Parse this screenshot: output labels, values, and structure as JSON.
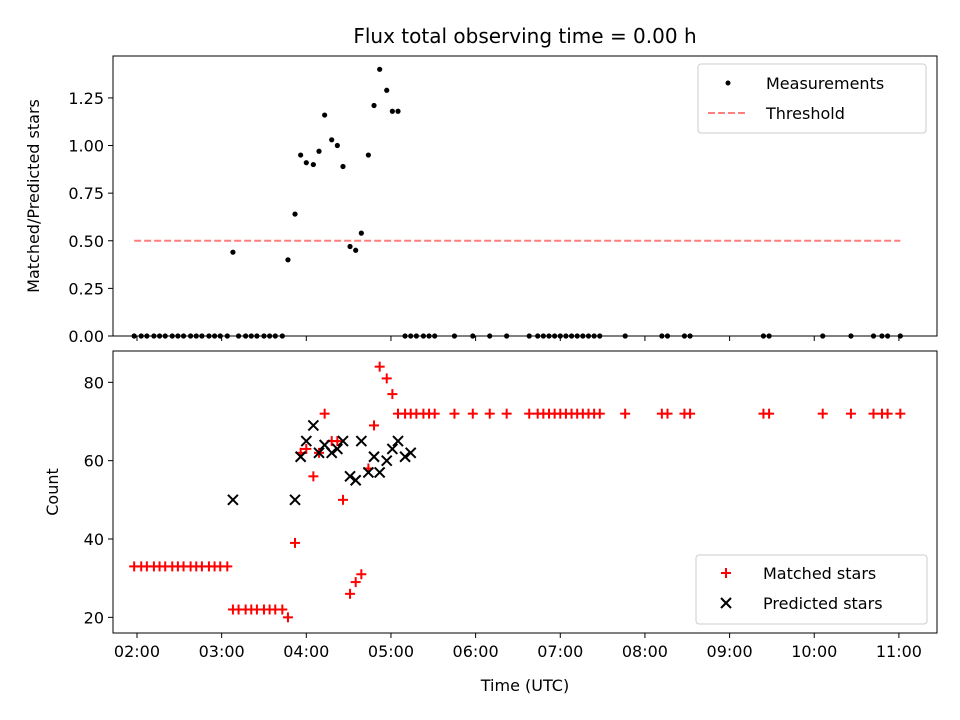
{
  "chart_data": [
    {
      "type": "scatter",
      "title": "Flux total observing time = 0.00 h",
      "xlabel": "",
      "ylabel": "Matched/Predicted stars",
      "xlim": [
        "01:43",
        "11:27"
      ],
      "ylim": [
        0,
        1.47
      ],
      "x_ticks": [
        "02:00",
        "03:00",
        "04:00",
        "05:00",
        "06:00",
        "07:00",
        "08:00",
        "09:00",
        "10:00",
        "11:00"
      ],
      "y_ticks": [
        {
          "value": 0.0,
          "label": "0.00"
        },
        {
          "value": 0.25,
          "label": "0.25"
        },
        {
          "value": 0.5,
          "label": "0.50"
        },
        {
          "value": 0.75,
          "label": "0.75"
        },
        {
          "value": 1.0,
          "label": "1.00"
        },
        {
          "value": 1.25,
          "label": "1.25"
        }
      ],
      "legend_position": "top-right",
      "series": [
        {
          "name": "Measurements",
          "kind": "dots",
          "color": "#000000",
          "x": [
            "01:58",
            "02:03",
            "02:07",
            "02:12",
            "02:16",
            "02:20",
            "02:25",
            "02:29",
            "02:33",
            "02:38",
            "02:42",
            "02:46",
            "02:51",
            "02:55",
            "02:59",
            "03:04",
            "03:08",
            "03:12",
            "03:17",
            "03:21",
            "03:25",
            "03:30",
            "03:34",
            "03:38",
            "03:43",
            "03:47",
            "03:52",
            "03:56",
            "04:00",
            "04:05",
            "04:09",
            "04:13",
            "04:18",
            "04:22",
            "04:26",
            "04:31",
            "04:35",
            "04:39",
            "04:44",
            "04:48",
            "04:52",
            "04:57",
            "05:01",
            "05:05",
            "05:10",
            "05:14",
            "05:18",
            "05:23",
            "05:27",
            "05:31",
            "05:45",
            "05:58",
            "06:10",
            "06:22",
            "06:38",
            "06:44",
            "06:48",
            "06:52",
            "06:56",
            "07:00",
            "07:04",
            "07:08",
            "07:12",
            "07:16",
            "07:20",
            "07:24",
            "07:28",
            "07:46",
            "08:12",
            "08:16",
            "08:28",
            "08:32",
            "09:24",
            "09:28",
            "10:06",
            "10:26",
            "10:42",
            "10:48",
            "10:52",
            "11:01"
          ],
          "y": [
            0,
            0,
            0,
            0,
            0,
            0,
            0,
            0,
            0,
            0,
            0,
            0,
            0,
            0,
            0,
            0,
            0.44,
            0,
            0,
            0,
            0,
            0,
            0,
            0,
            0,
            0.4,
            0.64,
            0.95,
            0.91,
            0.9,
            0.97,
            1.16,
            1.03,
            1.0,
            0.89,
            0.47,
            0.45,
            0.54,
            0.95,
            1.21,
            1.4,
            1.29,
            1.18,
            1.18,
            0,
            0,
            0,
            0,
            0,
            0,
            0,
            0,
            0,
            0,
            0,
            0,
            0,
            0,
            0,
            0,
            0,
            0,
            0,
            0,
            0,
            0,
            0,
            0,
            0,
            0,
            0,
            0,
            0,
            0,
            0,
            0,
            0,
            0,
            0,
            0
          ]
        },
        {
          "name": "Threshold",
          "kind": "dashed-line",
          "color": "#ff7f7f",
          "x": [
            "01:58",
            "11:01"
          ],
          "y": [
            0.5,
            0.5
          ]
        }
      ]
    },
    {
      "type": "scatter",
      "title": "",
      "xlabel": "Time (UTC)",
      "ylabel": "Count",
      "xlim": [
        "01:43",
        "11:27"
      ],
      "ylim": [
        16,
        88
      ],
      "x_ticks": [
        "02:00",
        "03:00",
        "04:00",
        "05:00",
        "06:00",
        "07:00",
        "08:00",
        "09:00",
        "10:00",
        "11:00"
      ],
      "y_ticks": [
        {
          "value": 20,
          "label": "20"
        },
        {
          "value": 40,
          "label": "40"
        },
        {
          "value": 60,
          "label": "60"
        },
        {
          "value": 80,
          "label": "80"
        }
      ],
      "legend_position": "bottom-right",
      "series": [
        {
          "name": "Matched stars",
          "kind": "plus",
          "color": "#ff0000",
          "x": [
            "01:58",
            "02:03",
            "02:07",
            "02:12",
            "02:16",
            "02:20",
            "02:25",
            "02:29",
            "02:33",
            "02:38",
            "02:42",
            "02:46",
            "02:51",
            "02:55",
            "02:59",
            "03:04",
            "03:08",
            "03:12",
            "03:17",
            "03:21",
            "03:25",
            "03:30",
            "03:34",
            "03:38",
            "03:43",
            "03:47",
            "03:52",
            "03:56",
            "04:00",
            "04:05",
            "04:09",
            "04:13",
            "04:18",
            "04:22",
            "04:26",
            "04:31",
            "04:35",
            "04:39",
            "04:44",
            "04:48",
            "04:52",
            "04:57",
            "05:01",
            "05:05",
            "05:10",
            "05:14",
            "05:18",
            "05:23",
            "05:27",
            "05:31",
            "05:45",
            "05:58",
            "06:10",
            "06:22",
            "06:38",
            "06:44",
            "06:48",
            "06:52",
            "06:56",
            "07:00",
            "07:04",
            "07:08",
            "07:12",
            "07:16",
            "07:20",
            "07:24",
            "07:28",
            "07:46",
            "08:12",
            "08:16",
            "08:28",
            "08:32",
            "09:24",
            "09:28",
            "10:06",
            "10:26",
            "10:42",
            "10:48",
            "10:52",
            "11:01"
          ],
          "y": [
            33,
            33,
            33,
            33,
            33,
            33,
            33,
            33,
            33,
            33,
            33,
            33,
            33,
            33,
            33,
            33,
            22,
            22,
            22,
            22,
            22,
            22,
            22,
            22,
            22,
            20,
            39,
            62,
            63,
            56,
            62,
            72,
            65,
            65,
            50,
            26,
            29,
            31,
            58,
            69,
            84,
            81,
            77,
            72,
            72,
            72,
            72,
            72,
            72,
            72,
            72,
            72,
            72,
            72,
            72,
            72,
            72,
            72,
            72,
            72,
            72,
            72,
            72,
            72,
            72,
            72,
            72,
            72,
            72,
            72,
            72,
            72,
            72,
            72,
            72,
            72,
            72,
            72,
            72,
            72
          ]
        },
        {
          "name": "Predicted stars",
          "kind": "cross",
          "color": "#000000",
          "x": [
            "03:08",
            "03:52",
            "03:56",
            "04:00",
            "04:05",
            "04:09",
            "04:13",
            "04:18",
            "04:22",
            "04:26",
            "04:31",
            "04:35",
            "04:39",
            "04:44",
            "04:48",
            "04:52",
            "04:57",
            "05:01",
            "05:05",
            "05:10",
            "05:14"
          ],
          "y": [
            50,
            50,
            61,
            65,
            69,
            62,
            64,
            62,
            63,
            65,
            56,
            55,
            65,
            57,
            61,
            57,
            60,
            63,
            65,
            61,
            62
          ]
        }
      ]
    }
  ]
}
